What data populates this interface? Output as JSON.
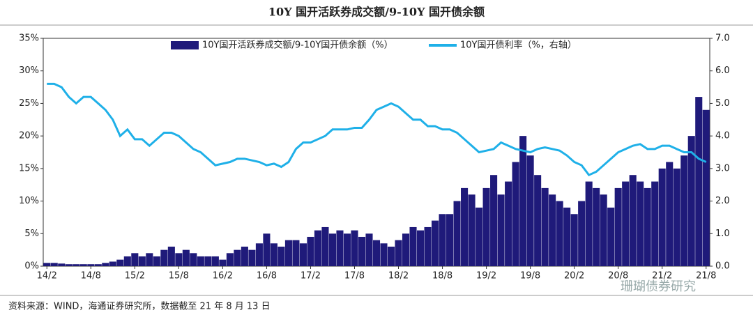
{
  "chart_data": {
    "type": "bar_line",
    "title": "10Y 国开活跃券成交额/9-10Y 国开债余额",
    "categories": [
      "14/2",
      null,
      null,
      null,
      null,
      null,
      "14/8",
      null,
      null,
      null,
      null,
      null,
      "15/2",
      null,
      null,
      null,
      null,
      null,
      "15/8",
      null,
      null,
      null,
      null,
      null,
      "16/2",
      null,
      null,
      null,
      null,
      null,
      "16/8",
      null,
      null,
      null,
      null,
      null,
      "17/2",
      null,
      null,
      null,
      null,
      null,
      "17/8",
      null,
      null,
      null,
      null,
      null,
      "18/2",
      null,
      null,
      null,
      null,
      null,
      "18/8",
      null,
      null,
      null,
      null,
      null,
      "19/2",
      null,
      null,
      null,
      null,
      null,
      "19/8",
      null,
      null,
      null,
      null,
      null,
      "20/2",
      null,
      null,
      null,
      null,
      null,
      "20/8",
      null,
      null,
      null,
      null,
      null,
      "21/2",
      null,
      null,
      null,
      null,
      null,
      "21/8"
    ],
    "series": [
      {
        "name": "10Y国开活跃券成交额/9-10Y国开债余额（%）",
        "color": "#1f1a7a",
        "values": [
          0.5,
          0.5,
          0.4,
          0.3,
          0.3,
          0.3,
          0.3,
          0.3,
          0.5,
          0.7,
          1.0,
          1.5,
          2,
          1.5,
          2,
          1.5,
          2.5,
          3,
          2,
          2.5,
          2,
          1.5,
          1.5,
          1.5,
          1,
          2,
          2.5,
          3,
          2.5,
          3.5,
          5,
          3.5,
          3,
          4,
          4,
          3.5,
          4.5,
          5.5,
          6,
          5,
          5.5,
          5,
          5.5,
          4.5,
          5,
          4,
          3.5,
          3,
          4,
          5,
          6,
          5.5,
          6,
          7,
          8,
          8,
          10,
          12,
          11,
          9,
          12,
          14,
          11,
          13,
          16,
          20,
          17,
          14,
          12,
          11,
          10,
          9,
          8,
          10,
          13,
          12,
          11,
          9,
          12,
          13,
          14,
          13,
          12,
          13,
          15,
          16,
          15,
          17,
          20,
          26,
          24
        ]
      },
      {
        "name": "10Y国开债利率（%，右轴）",
        "color": "#1fb0e8",
        "axis": "y2",
        "values": [
          5.6,
          5.6,
          5.5,
          5.2,
          5.0,
          5.2,
          5.2,
          5.0,
          4.8,
          4.5,
          4.0,
          4.2,
          3.9,
          3.9,
          3.7,
          3.9,
          4.1,
          4.1,
          4.0,
          3.8,
          3.6,
          3.5,
          3.3,
          3.1,
          3.15,
          3.2,
          3.3,
          3.3,
          3.25,
          3.2,
          3.1,
          3.15,
          3.05,
          3.2,
          3.6,
          3.8,
          3.8,
          3.9,
          4.0,
          4.2,
          4.2,
          4.2,
          4.25,
          4.25,
          4.5,
          4.8,
          4.9,
          5.0,
          4.9,
          4.7,
          4.5,
          4.5,
          4.3,
          4.3,
          4.2,
          4.2,
          4.1,
          3.9,
          3.7,
          3.5,
          3.55,
          3.6,
          3.8,
          3.7,
          3.6,
          3.55,
          3.5,
          3.6,
          3.65,
          3.6,
          3.55,
          3.4,
          3.2,
          3.1,
          2.8,
          2.9,
          3.1,
          3.3,
          3.5,
          3.6,
          3.7,
          3.75,
          3.6,
          3.6,
          3.7,
          3.7,
          3.6,
          3.5,
          3.5,
          3.3,
          3.2
        ]
      }
    ],
    "ylim": [
      0,
      35
    ],
    "yticks": [
      {
        "value": 0,
        "label": "0%"
      },
      {
        "value": 5,
        "label": "5%"
      },
      {
        "value": 10,
        "label": "10%"
      },
      {
        "value": 15,
        "label": "15%"
      },
      {
        "value": 20,
        "label": "20%"
      },
      {
        "value": 25,
        "label": "25%"
      },
      {
        "value": 30,
        "label": "30%"
      },
      {
        "value": 35,
        "label": "35%"
      }
    ],
    "y2lim": [
      0,
      7
    ],
    "y2ticks": [
      {
        "value": 0,
        "label": "0.0"
      },
      {
        "value": 1,
        "label": "1.0"
      },
      {
        "value": 2,
        "label": "2.0"
      },
      {
        "value": 3,
        "label": "3.0"
      },
      {
        "value": 4,
        "label": "4.0"
      },
      {
        "value": 5,
        "label": "5.0"
      },
      {
        "value": 6,
        "label": "6.0"
      },
      {
        "value": 7,
        "label": "7.0"
      }
    ],
    "source": "资料来源：WIND，海通证券研究所，数据截至 21 年 8 月 13 日",
    "watermark": "珊瑚债券研究"
  }
}
